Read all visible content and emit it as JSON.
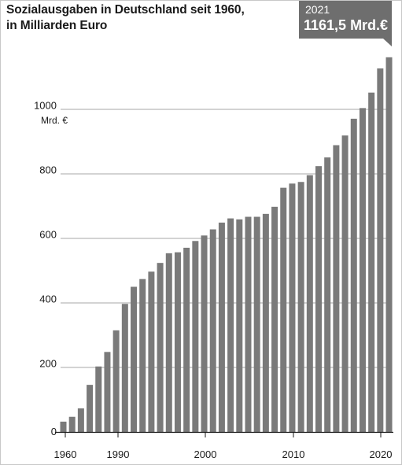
{
  "chart_data": {
    "type": "bar",
    "title_line1": "Sozialausgaben in Deutschland seit 1960,",
    "title_line2": "in Milliarden Euro",
    "ylabel_unit": "Mrd. €",
    "ylim": [
      0,
      1200
    ],
    "yticks": [
      "0",
      "200",
      "400",
      "600",
      "800",
      "1000"
    ],
    "xticks": [
      "1960",
      "1990",
      "2000",
      "2010",
      "2020"
    ],
    "grid": true,
    "bar_color": "#7a7a7a",
    "grid_color": "#8a8a8a",
    "callout": {
      "year": "2021",
      "value": "1161,5 Mrd.€"
    },
    "values": [
      32,
      47,
      73,
      146,
      203,
      248,
      315,
      397,
      450,
      474,
      497,
      524,
      554,
      557,
      571,
      592,
      609,
      628,
      649,
      662,
      659,
      667,
      667,
      676,
      698,
      757,
      770,
      775,
      796,
      824,
      851,
      889,
      919,
      971,
      1004,
      1052,
      1127,
      1161.5
    ]
  }
}
